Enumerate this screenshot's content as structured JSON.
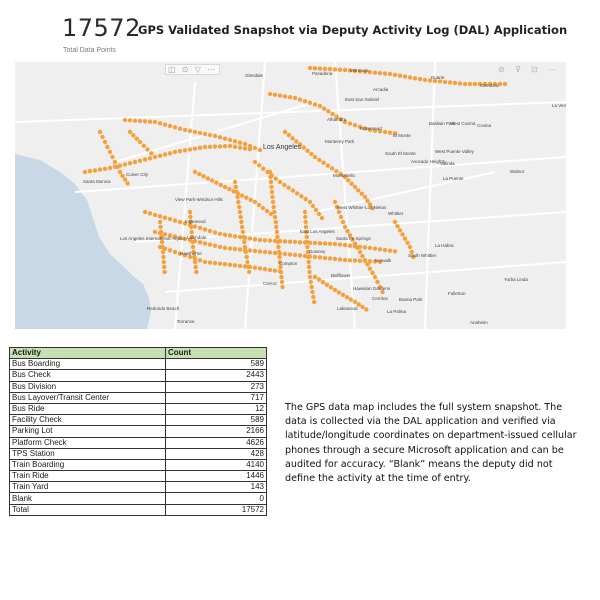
{
  "kpi": {
    "value": "17572",
    "caption": "Total Data Points"
  },
  "title": "GPS Validated Snapshot via Deputy Activity Log (DAL) Application",
  "map": {
    "marker_color": "#f5a03c",
    "land_color": "#efefef",
    "water_color": "#c9d8e6",
    "road_color": "#ffffff",
    "place_names": [
      "Glendale",
      "Pasadena",
      "Monrovia",
      "Arcadia",
      "Duarte",
      "Glendora",
      "East San Gabriel",
      "Alhambra",
      "Rosemead",
      "El Monte",
      "Baldwin Park",
      "West Covina",
      "Covina",
      "La Verne",
      "Los Angeles",
      "Culver City",
      "Monterey Park",
      "South El Monte",
      "West Puente Valley",
      "Avocado Heights",
      "Valinda",
      "Walnut",
      "La Puente",
      "Santa Monica",
      "View Park-Windsor Hills",
      "Montebello",
      "West Whittier-Los Nietos",
      "Whittier",
      "Inglewood",
      "Los Angeles International Airport",
      "Lawndale",
      "Hawthorne",
      "Bellflower",
      "Santa Fe Springs",
      "Norwalk",
      "South Whittier",
      "La Habra",
      "Cerritos",
      "Buena Park",
      "Fullerton",
      "Yorba Linda",
      "Redondo Beach",
      "Torrance",
      "Lakewood",
      "Hawaiian Gardens",
      "La Palma",
      "Anaheim",
      "Carson",
      "Compton",
      "Downey",
      "East Los Angeles"
    ],
    "toolbar": "◫ ⊙ ▽ ⋯",
    "tools_right": "⊘ ⊽ ⊡ ⋯"
  },
  "table": {
    "headers": {
      "activity": "Activity",
      "count": "Count"
    },
    "rows": [
      {
        "activity": "Bus Boarding",
        "count": "589"
      },
      {
        "activity": "Bus Check",
        "count": "2443"
      },
      {
        "activity": "Bus Division",
        "count": "273"
      },
      {
        "activity": "Bus Layover/Transit Center",
        "count": "717"
      },
      {
        "activity": "Bus Ride",
        "count": "12"
      },
      {
        "activity": "Facility Check",
        "count": "589"
      },
      {
        "activity": "Parking Lot",
        "count": "2166"
      },
      {
        "activity": "Platform Check",
        "count": "4626"
      },
      {
        "activity": "TPS Station",
        "count": "428"
      },
      {
        "activity": "Train Boarding",
        "count": "4140"
      },
      {
        "activity": "Train Ride",
        "count": "1446"
      },
      {
        "activity": "Train Yard",
        "count": "143"
      },
      {
        "activity": "Blank",
        "count": "0"
      },
      {
        "activity": "Total",
        "count": "17572"
      }
    ],
    "header_color": "#c6e0b4"
  },
  "description": "The GPS data map includes the full system snapshot. The data is collected via the DAL application and verified via latitude/longitude coordinates on department-issued cellular phones through a secure Microsoft application and can be audited for accuracy. “Blank” means the deputy did not define the activity at the time of entry."
}
